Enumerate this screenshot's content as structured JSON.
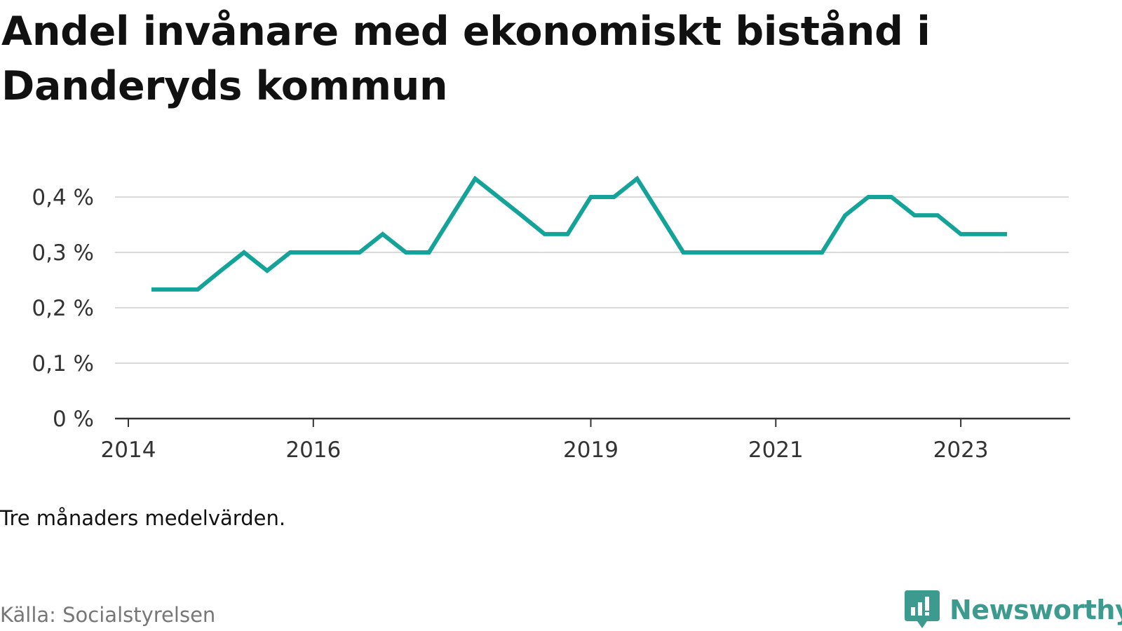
{
  "title": "Andel invånare med ekonomiskt bistånd i Danderyds kommun",
  "note": "Tre månaders medelvärden.",
  "source": "Källa: Socialstyrelsen",
  "brand": {
    "name": "Newsworthy",
    "icon": "newsworthy-logo-icon",
    "color": "#3d9a8f"
  },
  "colors": {
    "line": "#14a398",
    "grid": "#d9d9d9",
    "axis": "#333333"
  },
  "chart_data": {
    "type": "line",
    "title": "Andel invånare med ekonomiskt bistånd i Danderyds kommun",
    "xlabel": "",
    "ylabel": "",
    "ylim": [
      0,
      0.4
    ],
    "xlim": [
      "2014-01",
      "2024-03"
    ],
    "grid": true,
    "y_ticks": [
      {
        "value": 0,
        "label": "0 %"
      },
      {
        "value": 0.1,
        "label": "0,1 %"
      },
      {
        "value": 0.2,
        "label": "0,2 %"
      },
      {
        "value": 0.3,
        "label": "0,3 %"
      },
      {
        "value": 0.4,
        "label": "0,4 %"
      }
    ],
    "x_ticks": [
      {
        "value": "2014-01",
        "label": "2014"
      },
      {
        "value": "2016-01",
        "label": "2016"
      },
      {
        "value": "2019-01",
        "label": "2019"
      },
      {
        "value": "2021-01",
        "label": "2021"
      },
      {
        "value": "2023-01",
        "label": "2023"
      }
    ],
    "series": [
      {
        "name": "",
        "color": "#14a398",
        "points": [
          {
            "x": "2014-04",
            "y": 0.233
          },
          {
            "x": "2014-07",
            "y": 0.233
          },
          {
            "x": "2014-10",
            "y": 0.233
          },
          {
            "x": "2015-01",
            "y": 0.267
          },
          {
            "x": "2015-04",
            "y": 0.3
          },
          {
            "x": "2015-07",
            "y": 0.267
          },
          {
            "x": "2015-10",
            "y": 0.3
          },
          {
            "x": "2016-01",
            "y": 0.3
          },
          {
            "x": "2016-04",
            "y": 0.3
          },
          {
            "x": "2016-07",
            "y": 0.3
          },
          {
            "x": "2016-10",
            "y": 0.333
          },
          {
            "x": "2017-01",
            "y": 0.3
          },
          {
            "x": "2017-04",
            "y": 0.3
          },
          {
            "x": "2017-07",
            "y": 0.367
          },
          {
            "x": "2017-10",
            "y": 0.433
          },
          {
            "x": "2018-01",
            "y": 0.4
          },
          {
            "x": "2018-04",
            "y": 0.367
          },
          {
            "x": "2018-07",
            "y": 0.333
          },
          {
            "x": "2018-10",
            "y": 0.333
          },
          {
            "x": "2019-01",
            "y": 0.4
          },
          {
            "x": "2019-04",
            "y": 0.4
          },
          {
            "x": "2019-07",
            "y": 0.433
          },
          {
            "x": "2019-10",
            "y": 0.367
          },
          {
            "x": "2020-01",
            "y": 0.3
          },
          {
            "x": "2020-04",
            "y": 0.3
          },
          {
            "x": "2020-07",
            "y": 0.3
          },
          {
            "x": "2020-10",
            "y": 0.3
          },
          {
            "x": "2021-01",
            "y": 0.3
          },
          {
            "x": "2021-04",
            "y": 0.3
          },
          {
            "x": "2021-07",
            "y": 0.3
          },
          {
            "x": "2021-10",
            "y": 0.367
          },
          {
            "x": "2022-01",
            "y": 0.4
          },
          {
            "x": "2022-04",
            "y": 0.4
          },
          {
            "x": "2022-07",
            "y": 0.367
          },
          {
            "x": "2022-10",
            "y": 0.367
          },
          {
            "x": "2023-01",
            "y": 0.333
          },
          {
            "x": "2023-04",
            "y": 0.333
          },
          {
            "x": "2023-07",
            "y": 0.333
          }
        ]
      }
    ]
  }
}
